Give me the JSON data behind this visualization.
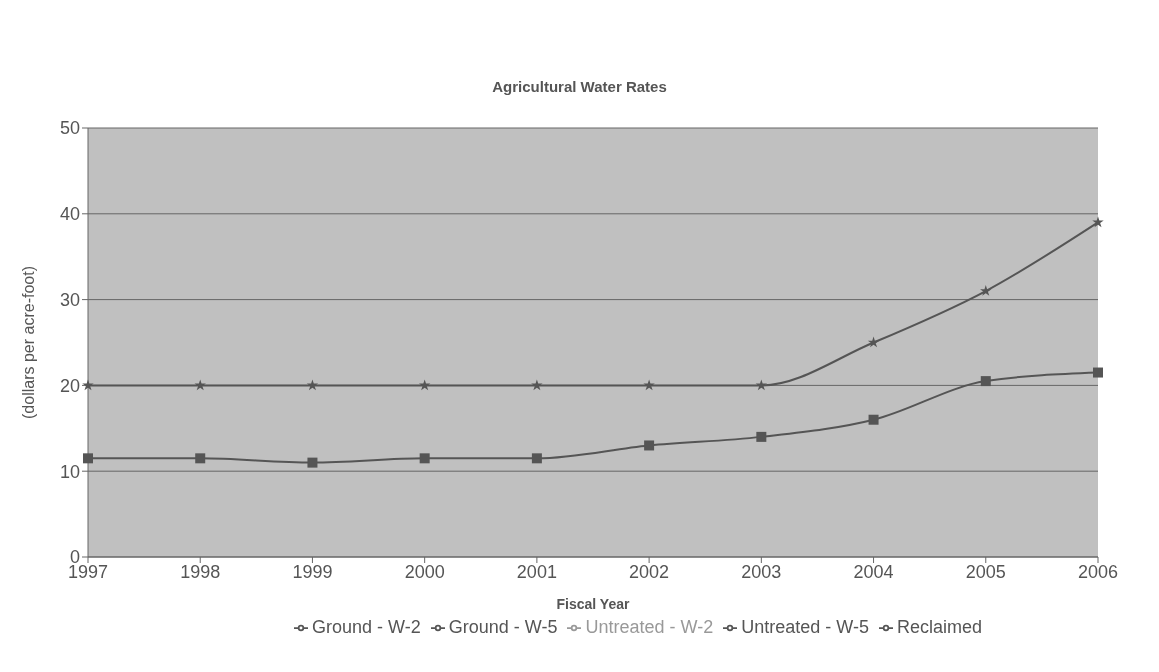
{
  "chart_data": {
    "type": "line",
    "title": "Agricultural Water Rates",
    "xlabel": "Fiscal Year",
    "ylabel": "(dollars per acre-foot)",
    "categories": [
      "1997",
      "1998",
      "1999",
      "2000",
      "2001",
      "2002",
      "2003",
      "2004",
      "2005",
      "2006"
    ],
    "ylim": [
      0,
      50
    ],
    "yticks": [
      0,
      10,
      20,
      30,
      40,
      50
    ],
    "grid": "y",
    "legend": "bottom",
    "series": [
      {
        "name": "Ground - W-2",
        "color": "#555555",
        "marker": "diamond",
        "values": [
          null,
          null,
          null,
          null,
          null,
          null,
          null,
          null,
          null,
          null
        ]
      },
      {
        "name": "Ground - W-5",
        "color": "#555555",
        "marker": "square",
        "values": [
          11.5,
          11.5,
          11,
          11.5,
          11.5,
          13,
          14,
          16,
          20.5,
          21.5
        ]
      },
      {
        "name": "Untreated - W-2",
        "color": "#999999",
        "marker": "triangle",
        "values": [
          null,
          null,
          null,
          null,
          null,
          null,
          null,
          null,
          null,
          null
        ]
      },
      {
        "name": "Untreated - W-5",
        "color": "#555555",
        "marker": "cross",
        "values": [
          null,
          null,
          null,
          null,
          null,
          null,
          null,
          null,
          null,
          null
        ]
      },
      {
        "name": "Reclaimed",
        "color": "#555555",
        "marker": "star",
        "values": [
          20,
          20,
          20,
          20,
          20,
          20,
          20,
          25,
          31,
          39
        ]
      }
    ]
  }
}
